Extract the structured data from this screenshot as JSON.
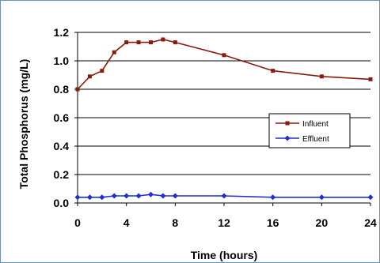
{
  "chart_data": {
    "type": "line",
    "title": "",
    "xlabel": "Time (hours)",
    "ylabel": "Total Phosphorus (mg/L)",
    "xlim": [
      0,
      24
    ],
    "ylim": [
      0.0,
      1.2
    ],
    "xticks": [
      0,
      4,
      8,
      12,
      16,
      20,
      24
    ],
    "yticks": [
      0.0,
      0.2,
      0.4,
      0.6,
      0.8,
      1.0,
      1.2
    ],
    "ytick_labels": [
      "0.0",
      "0.2",
      "0.4",
      "0.6",
      "0.8",
      "1.0",
      "1.2"
    ],
    "grid": "horizontal",
    "legend_position": "center-right",
    "series": [
      {
        "name": "Influent",
        "color": "#8b1a0e",
        "marker": "square",
        "x": [
          0,
          1,
          2,
          3,
          4,
          5,
          6,
          7,
          8,
          12,
          16,
          20,
          24
        ],
        "y": [
          0.8,
          0.89,
          0.93,
          1.06,
          1.13,
          1.13,
          1.13,
          1.15,
          1.13,
          1.04,
          0.93,
          0.89,
          0.87
        ]
      },
      {
        "name": "Effluent",
        "color": "#1f2fd0",
        "marker": "diamond",
        "x": [
          0,
          1,
          2,
          3,
          4,
          5,
          6,
          7,
          8,
          12,
          16,
          20,
          24
        ],
        "y": [
          0.04,
          0.04,
          0.04,
          0.05,
          0.05,
          0.05,
          0.06,
          0.05,
          0.05,
          0.05,
          0.04,
          0.04,
          0.04
        ]
      }
    ]
  }
}
